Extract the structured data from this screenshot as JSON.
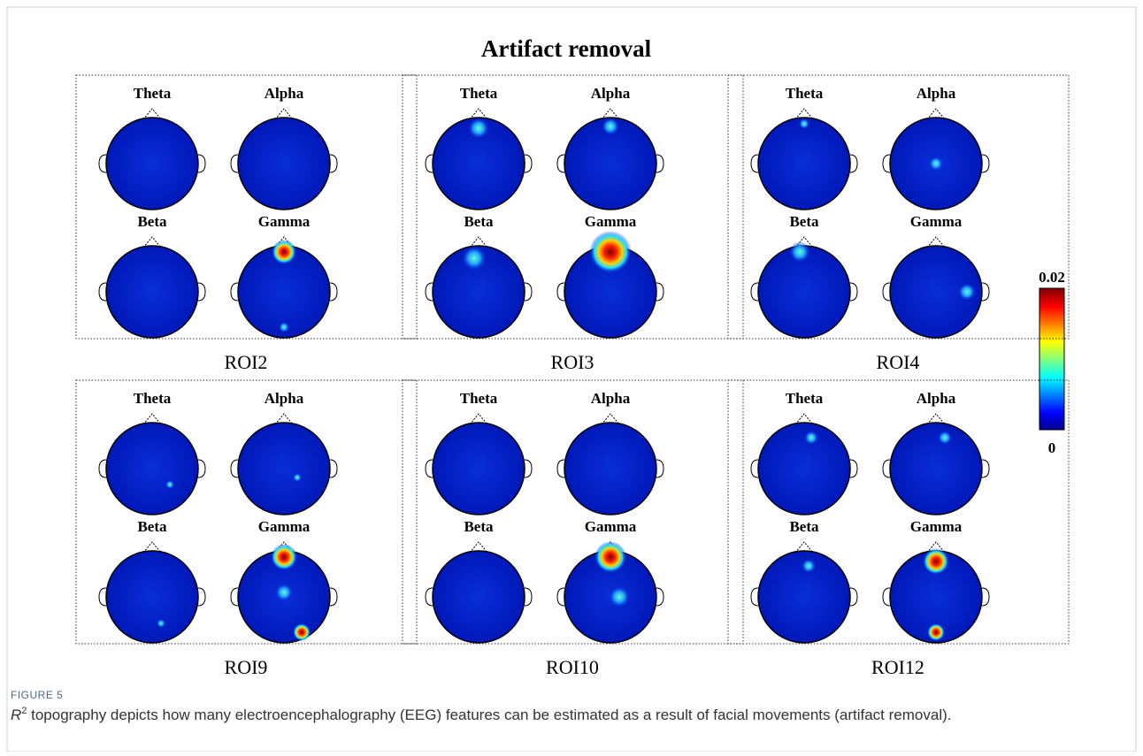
{
  "figure": {
    "title": "Artifact removal",
    "bands": [
      "Theta",
      "Alpha",
      "Beta",
      "Gamma"
    ],
    "panels": [
      {
        "label": "ROI2"
      },
      {
        "label": "ROI3"
      },
      {
        "label": "ROI4"
      },
      {
        "label": "ROI9"
      },
      {
        "label": "ROI10"
      },
      {
        "label": "ROI12"
      }
    ],
    "colorbar": {
      "max": 0.02,
      "min": 0
    },
    "figure_label": "FIGURE 5",
    "caption": {
      "symbol": "R",
      "superscript": "2",
      "text": " topography depicts how many electroencephalography (EEG) features can be estimated as a result of facial movements (artifact removal)."
    }
  }
}
